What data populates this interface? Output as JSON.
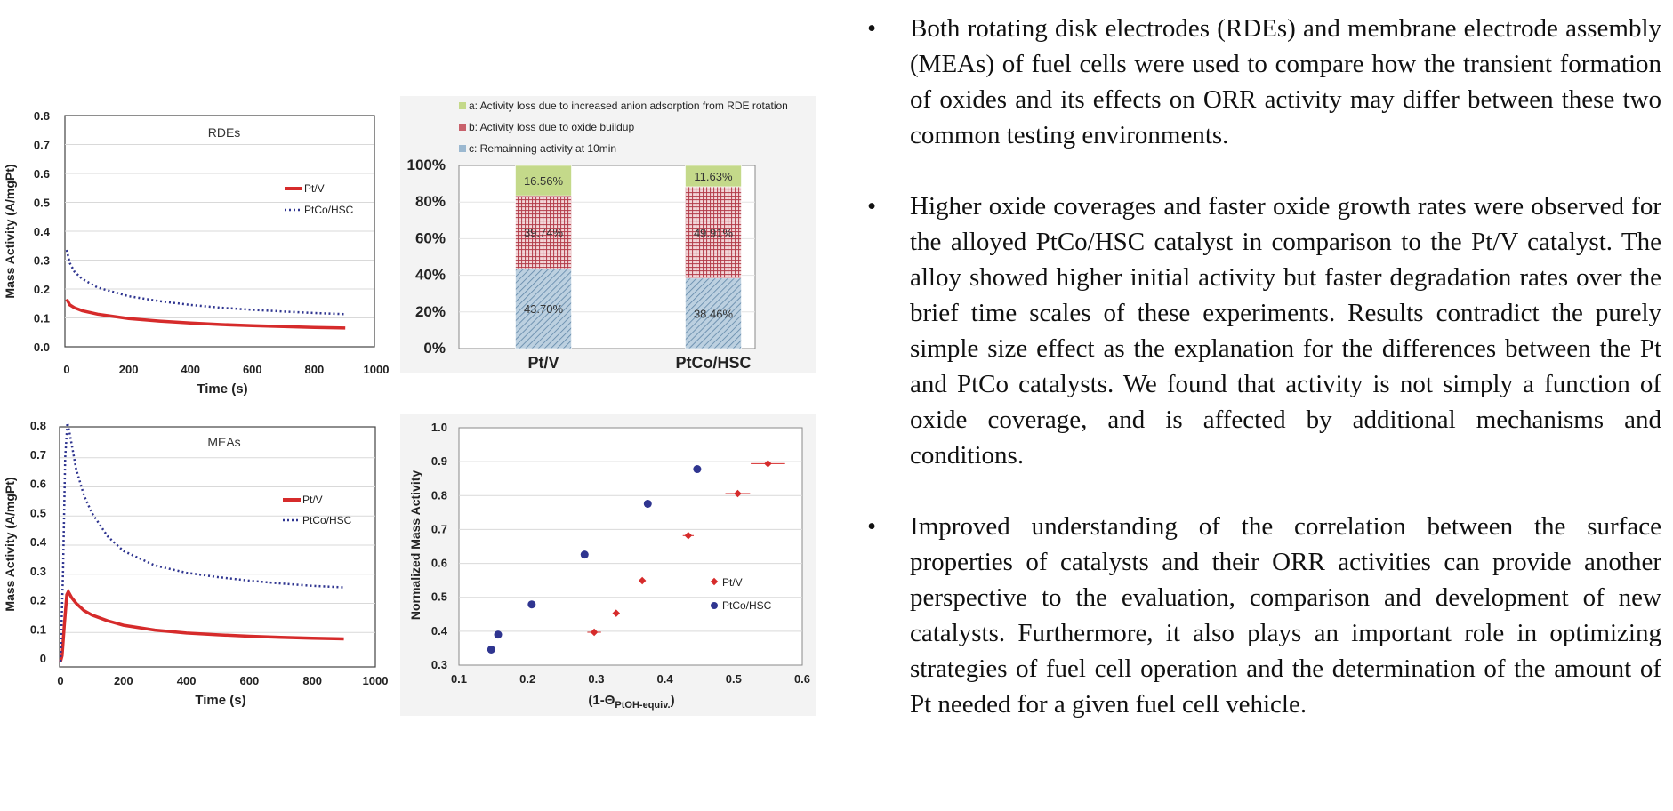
{
  "charts": {
    "rde": {
      "label": "RDEs",
      "ylabel": "Mass Activity (A/mgPt)",
      "xlabel": "Time (s)",
      "xticks": [
        "0",
        "200",
        "400",
        "600",
        "800",
        "1000"
      ],
      "yticks": [
        "0.0",
        "0.1",
        "0.2",
        "0.3",
        "0.4",
        "0.5",
        "0.6",
        "0.7",
        "0.8"
      ],
      "legend": [
        "Pt/V",
        "PtCo/HSC"
      ]
    },
    "mea": {
      "label": "MEAs",
      "ylabel": "Mass Activity (A/mgPt)",
      "xlabel": "Time (s)",
      "xticks": [
        "0",
        "200",
        "400",
        "600",
        "800",
        "1000"
      ],
      "yticks": [
        "0",
        "0.1",
        "0.2",
        "0.3",
        "0.4",
        "0.5",
        "0.6",
        "0.7",
        "0.8"
      ],
      "legend": [
        "Pt/V",
        "PtCo/HSC"
      ]
    },
    "bar": {
      "legend": [
        "a: Activity loss due to increased anion adsorption from RDE rotation",
        "b: Activity loss due to oxide buildup",
        "c: Remainning activity at 10min"
      ],
      "yticks": [
        "0%",
        "20%",
        "40%",
        "60%",
        "80%",
        "100%"
      ],
      "categories": [
        "Pt/V",
        "PtCo/HSC"
      ],
      "labels": {
        "ptv": [
          "43.70%",
          "39.74%",
          "16.56%"
        ],
        "ptco": [
          "38.46%",
          "49.91%",
          "11.63%"
        ]
      }
    },
    "scatter": {
      "ylabel": "Normalized Mass Activity",
      "xlabel_main": "(1-Θ",
      "xlabel_sub": "PtOH-equiv.",
      "xlabel_end": ")",
      "xticks": [
        "0.1",
        "0.2",
        "0.3",
        "0.4",
        "0.5",
        "0.6"
      ],
      "yticks": [
        "0.3",
        "0.4",
        "0.5",
        "0.6",
        "0.7",
        "0.8",
        "0.9",
        "1.0"
      ],
      "legend": [
        "Pt/V",
        "PtCo/HSC"
      ]
    }
  },
  "chart_data": [
    {
      "type": "line",
      "title": "RDEs",
      "xlabel": "Time (s)",
      "ylabel": "Mass Activity (A/mgPt)",
      "xlim": [
        0,
        1000
      ],
      "ylim": [
        0,
        0.8
      ],
      "series": [
        {
          "name": "Pt/V",
          "color": "#d62b2b",
          "style": "solid",
          "x": [
            0,
            10,
            25,
            50,
            100,
            200,
            300,
            400,
            500,
            600,
            700,
            800,
            900
          ],
          "y": [
            0.165,
            0.145,
            0.135,
            0.125,
            0.113,
            0.098,
            0.089,
            0.082,
            0.077,
            0.073,
            0.07,
            0.067,
            0.065
          ]
        },
        {
          "name": "PtCo/HSC",
          "color": "#2f3590",
          "style": "dotted",
          "x": [
            0,
            10,
            25,
            50,
            100,
            200,
            300,
            400,
            500,
            600,
            700,
            800,
            900
          ],
          "y": [
            0.335,
            0.29,
            0.26,
            0.235,
            0.205,
            0.175,
            0.158,
            0.145,
            0.135,
            0.128,
            0.122,
            0.117,
            0.113
          ]
        }
      ]
    },
    {
      "type": "bar",
      "categories": [
        "Pt/V",
        "PtCo/HSC"
      ],
      "ylim": [
        0,
        100
      ],
      "series": [
        {
          "name": "c: Remainning activity at 10min",
          "color": "#9bb8d0",
          "values": [
            43.7,
            38.46
          ]
        },
        {
          "name": "b: Activity loss due to oxide buildup",
          "color": "#c8616b",
          "values": [
            39.74,
            49.91
          ]
        },
        {
          "name": "a: Activity loss due to increased anion adsorption from RDE rotation",
          "color": "#c4d98a",
          "values": [
            16.56,
            11.63
          ]
        }
      ]
    },
    {
      "type": "line",
      "title": "MEAs",
      "xlabel": "Time (s)",
      "ylabel": "Mass Activity (A/mgPt)",
      "xlim": [
        0,
        1000
      ],
      "ylim": [
        0,
        0.8
      ],
      "series": [
        {
          "name": "Pt/V",
          "color": "#d62b2b",
          "style": "solid",
          "x": [
            0,
            5,
            12,
            20,
            25,
            35,
            50,
            75,
            100,
            150,
            200,
            300,
            400,
            500,
            600,
            700,
            800,
            900
          ],
          "y": [
            0.0,
            0.02,
            0.12,
            0.23,
            0.24,
            0.22,
            0.2,
            0.175,
            0.16,
            0.14,
            0.125,
            0.108,
            0.098,
            0.092,
            0.087,
            0.083,
            0.08,
            0.078
          ]
        },
        {
          "name": "PtCo/HSC",
          "color": "#2f3590",
          "style": "dotted",
          "x": [
            0,
            8,
            15,
            22,
            30,
            50,
            75,
            100,
            150,
            200,
            300,
            400,
            500,
            600,
            700,
            800,
            900
          ],
          "y": [
            0.0,
            0.3,
            0.7,
            0.82,
            0.78,
            0.66,
            0.57,
            0.51,
            0.43,
            0.38,
            0.33,
            0.305,
            0.29,
            0.278,
            0.268,
            0.26,
            0.255
          ]
        }
      ]
    },
    {
      "type": "scatter",
      "xlabel": "(1-ΘPtOH-equiv.)",
      "ylabel": "Normalized Mass Activity",
      "xlim": [
        0.1,
        0.6
      ],
      "ylim": [
        0.3,
        1.0
      ],
      "series": [
        {
          "name": "Pt/V",
          "color": "#d62b2b",
          "marker": "diamond",
          "x": [
            0.297,
            0.329,
            0.367,
            0.434,
            0.506,
            0.55
          ],
          "y": [
            0.397,
            0.453,
            0.549,
            0.682,
            0.806,
            0.894
          ],
          "xerr": [
            0.01,
            0.003,
            0.003,
            0.008,
            0.018,
            0.025
          ]
        },
        {
          "name": "PtCo/HSC",
          "color": "#2f3590",
          "marker": "circle",
          "x": [
            0.147,
            0.157,
            0.206,
            0.283,
            0.375,
            0.447
          ],
          "y": [
            0.346,
            0.39,
            0.479,
            0.626,
            0.776,
            0.878
          ]
        }
      ]
    }
  ],
  "text": {
    "bullet_mark": "•",
    "bullets": [
      "Both rotating disk electrodes (RDEs) and membrane electrode assembly (MEAs) of fuel cells were used to compare how the transient formation of oxides and its effects on ORR activity may differ between these two common testing environments.",
      "Higher oxide coverages and faster oxide growth rates were observed for the alloyed PtCo/HSC catalyst in comparison to the Pt/V catalyst. The alloy showed higher initial activity but faster degradation rates over the brief time scales of these experiments. Results contradict the purely simple size effect as the explanation for the differences between the Pt and PtCo catalysts. We found that activity is not simply a function of oxide coverage, and is affected by additional mechanisms and conditions.",
      "Improved understanding of the correlation between the surface properties of catalysts and their ORR activities can provide another perspective to the evaluation, comparison and development of new catalysts. Furthermore, it also plays an important role in optimizing strategies of fuel cell operation and the determination of the amount of Pt needed for a given fuel cell vehicle."
    ]
  }
}
